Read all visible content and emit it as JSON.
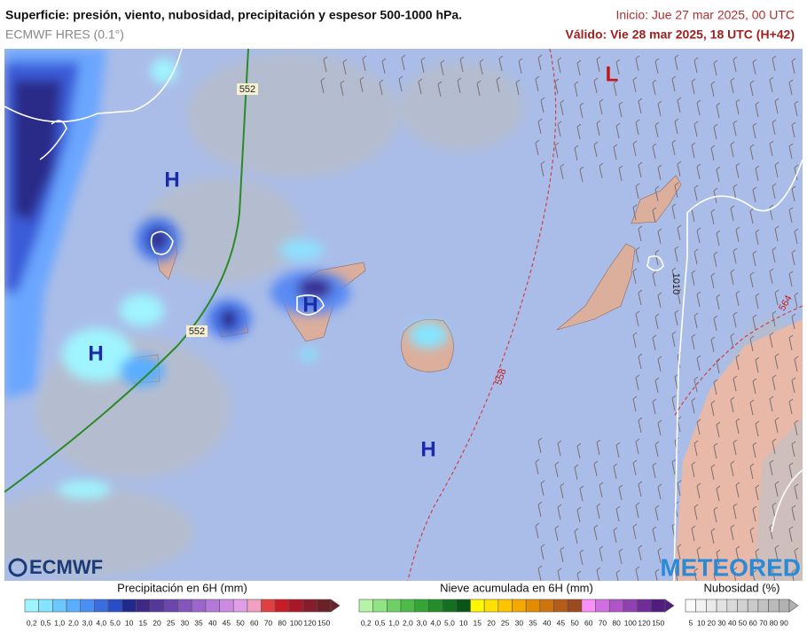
{
  "header": {
    "title": "Superficie: presión, viento, nubosidad, precipitación y espesor 500-1000 hPa.",
    "subtitle": "ECMWF HRES (0.1°)",
    "init": "Inicio: Jue 27 mar 2025, 00 UTC",
    "valid": "Válido: Vie 28 mar 2025, 18 UTC (H+42)"
  },
  "map": {
    "labels": [
      "H",
      "H",
      "H",
      "H",
      "L",
      "552",
      "552",
      "558",
      "564",
      "1010"
    ]
  },
  "logos": {
    "left": "ECMWF",
    "right": "METEORED"
  },
  "legends": [
    {
      "title": "Precipitación en 6H (mm)",
      "labels": [
        "0,2",
        "0,5",
        "1,0",
        "2,0",
        "3,0",
        "4,0",
        "5,0",
        "10",
        "15",
        "20",
        "25",
        "30",
        "35",
        "40",
        "45",
        "50",
        "60",
        "70",
        "80",
        "100",
        "120",
        "150"
      ],
      "colors": [
        "#9ff4ff",
        "#86e4ff",
        "#6cc8ff",
        "#5aaeff",
        "#4a90f4",
        "#3a6ee0",
        "#2a4cc8",
        "#1f2a8c",
        "#3e2a86",
        "#55389a",
        "#6c46ac",
        "#8456bc",
        "#9c66cc",
        "#b478d8",
        "#cc8ae2",
        "#e09ee8",
        "#f0a0c0",
        "#e04040",
        "#c81c28",
        "#a81828",
        "#861c2c",
        "#6a2228"
      ]
    },
    {
      "title": "Nieve acumulada en 6H (mm)",
      "labels": [
        "0,2",
        "0,5",
        "1,0",
        "2,0",
        "3,0",
        "4,0",
        "5,0",
        "10",
        "15",
        "20",
        "25",
        "30",
        "35",
        "40",
        "45",
        "50",
        "60",
        "70",
        "80",
        "100",
        "120",
        "150"
      ],
      "colors": [
        "#b4f4a4",
        "#90e484",
        "#6cd064",
        "#4cbc48",
        "#34a434",
        "#248c28",
        "#147020",
        "#0a5418",
        "#fff800",
        "#ffe000",
        "#ffc400",
        "#f4a800",
        "#e48c00",
        "#cc7410",
        "#b45c18",
        "#9c4820",
        "#f890f8",
        "#d070e0",
        "#b054c8",
        "#9040b0",
        "#702c98",
        "#501c80"
      ]
    },
    {
      "title": "Nubosidad (%)",
      "labels": [
        "5",
        "10",
        "20",
        "30",
        "40",
        "50",
        "60",
        "70",
        "80",
        "90"
      ],
      "colors": [
        "#fafafa",
        "#f2f2f2",
        "#eaeaea",
        "#e2e2e2",
        "#dadada",
        "#d2d2d2",
        "#cacaca",
        "#c2c2c2",
        "#bababa",
        "#b2b2b2"
      ]
    }
  ]
}
